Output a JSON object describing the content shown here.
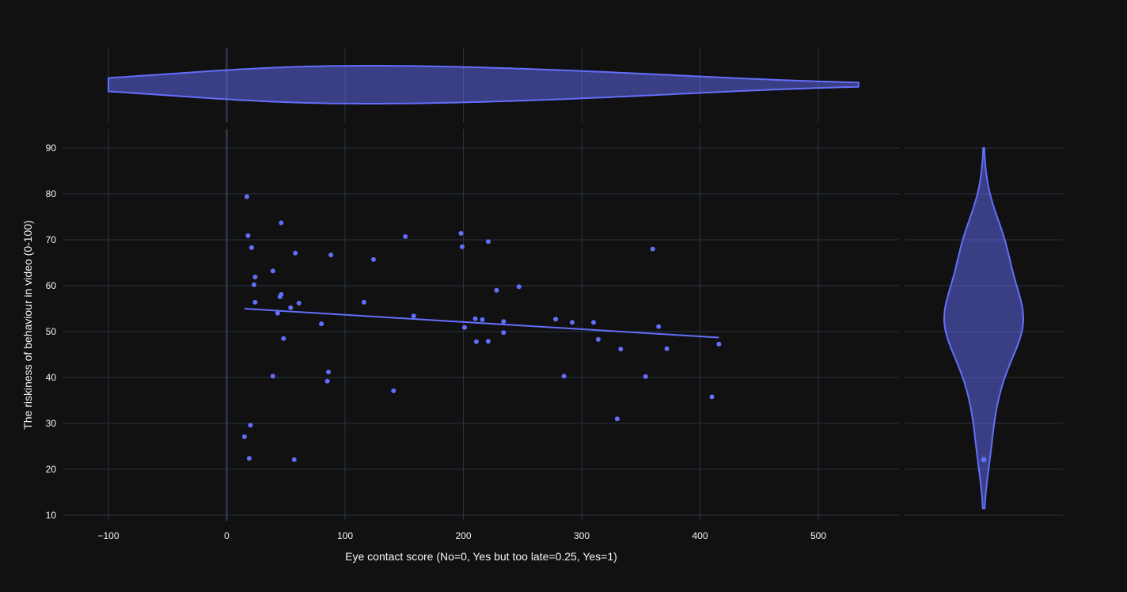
{
  "chart_data": {
    "type": "scatter",
    "xlabel": "Eye contact score (No=0, Yes but too late=0.25, Yes=1)",
    "ylabel": "The riskiness of behaviour in video (0-100)",
    "xlim": [
      -100,
      500
    ],
    "ylim": [
      10,
      90
    ],
    "x_ticks": [
      -100,
      0,
      100,
      200,
      300,
      400,
      500
    ],
    "x_tick_labels": [
      "−100",
      "0",
      "100",
      "200",
      "300",
      "400",
      "500"
    ],
    "y_ticks": [
      10,
      20,
      30,
      40,
      50,
      60,
      70,
      80,
      90
    ],
    "grid": true,
    "colors": {
      "marker": "#636efa",
      "background": "#111111",
      "grid": "#283442",
      "text": "#f2f5fa"
    },
    "marginals": {
      "x": "violin",
      "y": "violin"
    },
    "trendline": {
      "type": "ols",
      "x": [
        15,
        416
      ],
      "y": [
        55.0,
        48.7
      ]
    },
    "points": [
      {
        "x": 17,
        "y": 79.4
      },
      {
        "x": 18,
        "y": 70.9
      },
      {
        "x": 21,
        "y": 68.3
      },
      {
        "x": 24,
        "y": 61.9
      },
      {
        "x": 23,
        "y": 60.2
      },
      {
        "x": 24,
        "y": 56.4
      },
      {
        "x": 15,
        "y": 27.1
      },
      {
        "x": 20,
        "y": 29.6
      },
      {
        "x": 19,
        "y": 22.4
      },
      {
        "x": 46,
        "y": 73.7
      },
      {
        "x": 58,
        "y": 67.1
      },
      {
        "x": 39,
        "y": 63.2
      },
      {
        "x": 46,
        "y": 58.1
      },
      {
        "x": 45,
        "y": 57.6
      },
      {
        "x": 61,
        "y": 56.2
      },
      {
        "x": 54,
        "y": 55.2
      },
      {
        "x": 43,
        "y": 54.0
      },
      {
        "x": 48,
        "y": 48.5
      },
      {
        "x": 39,
        "y": 40.3
      },
      {
        "x": 57,
        "y": 22.1
      },
      {
        "x": 88,
        "y": 66.7
      },
      {
        "x": 80,
        "y": 51.7
      },
      {
        "x": 86,
        "y": 41.2
      },
      {
        "x": 85,
        "y": 39.2
      },
      {
        "x": 124,
        "y": 65.7
      },
      {
        "x": 116,
        "y": 56.4
      },
      {
        "x": 151,
        "y": 70.7
      },
      {
        "x": 158,
        "y": 53.4
      },
      {
        "x": 141,
        "y": 37.1
      },
      {
        "x": 198,
        "y": 71.4
      },
      {
        "x": 199,
        "y": 68.5
      },
      {
        "x": 221,
        "y": 69.6
      },
      {
        "x": 228,
        "y": 59.0
      },
      {
        "x": 247,
        "y": 59.8
      },
      {
        "x": 210,
        "y": 52.8
      },
      {
        "x": 216,
        "y": 52.6
      },
      {
        "x": 234,
        "y": 52.2
      },
      {
        "x": 201,
        "y": 50.9
      },
      {
        "x": 234,
        "y": 49.8
      },
      {
        "x": 211,
        "y": 47.8
      },
      {
        "x": 221,
        "y": 47.9
      },
      {
        "x": 278,
        "y": 52.7
      },
      {
        "x": 292,
        "y": 52.0
      },
      {
        "x": 310,
        "y": 52.0
      },
      {
        "x": 285,
        "y": 40.3
      },
      {
        "x": 314,
        "y": 48.3
      },
      {
        "x": 333,
        "y": 46.2
      },
      {
        "x": 330,
        "y": 31.0
      },
      {
        "x": 360,
        "y": 68.0
      },
      {
        "x": 365,
        "y": 51.1
      },
      {
        "x": 372,
        "y": 46.3
      },
      {
        "x": 354,
        "y": 40.2
      },
      {
        "x": 410,
        "y": 35.8
      },
      {
        "x": 416,
        "y": 47.3
      }
    ]
  }
}
